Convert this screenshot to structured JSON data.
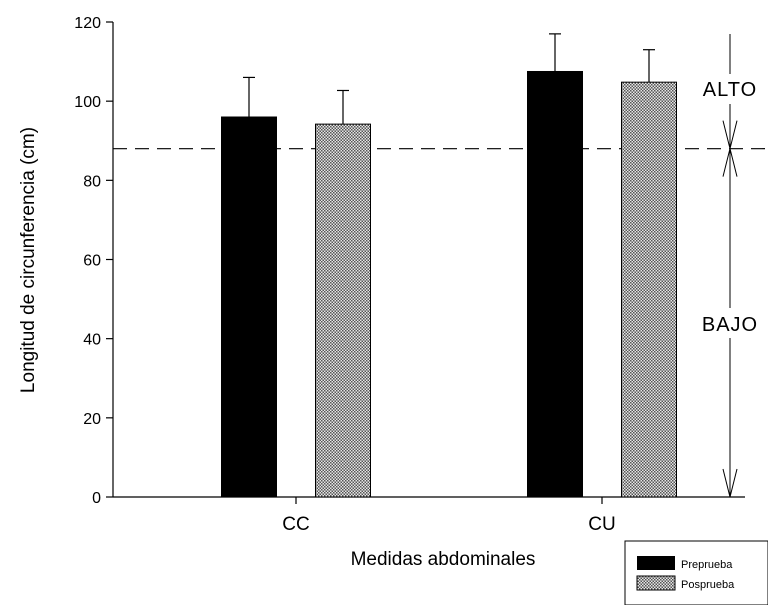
{
  "chart_data": {
    "type": "bar",
    "categories": [
      "CC",
      "CU"
    ],
    "series": [
      {
        "name": "Preprueba",
        "values": [
          96,
          107.5
        ],
        "errors": [
          10,
          9.5
        ],
        "fill": "solid",
        "color": "#000000"
      },
      {
        "name": "Posprueba",
        "values": [
          94.2,
          104.8
        ],
        "errors": [
          8.5,
          8.2
        ],
        "fill": "crosshatch",
        "color": "#9a9a9a"
      }
    ],
    "xlabel": "Medidas abdominales",
    "ylabel": "Longitud de circunferencia (cm)",
    "ylim": [
      0,
      120
    ],
    "yticks": [
      0,
      20,
      40,
      60,
      80,
      100,
      120
    ],
    "threshold": 88,
    "zones": {
      "high": "ALTO",
      "low": "BAJO"
    },
    "grid": false,
    "legend_position": "bottom-right"
  }
}
